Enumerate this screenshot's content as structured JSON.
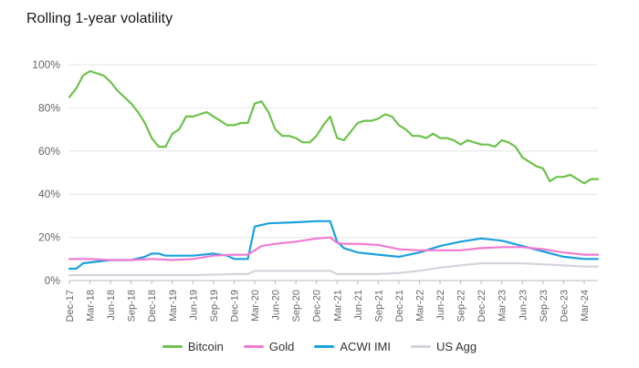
{
  "chart_data": {
    "type": "line",
    "title": "Rolling 1-year volatility",
    "y_unit": "%",
    "ylim": [
      0,
      100
    ],
    "y_ticks": [
      0,
      20,
      40,
      60,
      80,
      100
    ],
    "y_tick_labels": [
      "0%",
      "20%",
      "40%",
      "60%",
      "80%",
      "100%"
    ],
    "x_range": [
      "2017-12",
      "2024-05"
    ],
    "x_ticks": [
      "2017-12",
      "2018-03",
      "2018-06",
      "2018-09",
      "2018-12",
      "2019-03",
      "2019-06",
      "2019-09",
      "2019-12",
      "2020-03",
      "2020-06",
      "2020-09",
      "2020-12",
      "2021-03",
      "2021-06",
      "2021-09",
      "2021-12",
      "2022-03",
      "2022-06",
      "2022-09",
      "2022-12",
      "2023-03",
      "2023-06",
      "2023-09",
      "2023-12",
      "2024-03"
    ],
    "x_tick_labels": [
      "Dec-17",
      "Mar-18",
      "Jun-18",
      "Sep-18",
      "Dec-18",
      "Mar-19",
      "Jun-19",
      "Sep-19",
      "Dec-19",
      "Mar-20",
      "Jun-20",
      "Sep-20",
      "Dec-20",
      "Mar-21",
      "Jun-21",
      "Sep-21",
      "Dec-21",
      "Mar-22",
      "Jun-22",
      "Sep-22",
      "Dec-22",
      "Mar-23",
      "Jun-23",
      "Sep-23",
      "Dec-23",
      "Mar-24"
    ],
    "grid": "horizontal",
    "legend_position": "bottom",
    "series": [
      {
        "name": "Bitcoin",
        "color": "#6cc24a",
        "points": [
          [
            "2017-12",
            85
          ],
          [
            "2018-01",
            89
          ],
          [
            "2018-02",
            95
          ],
          [
            "2018-03",
            97
          ],
          [
            "2018-04",
            96
          ],
          [
            "2018-05",
            95
          ],
          [
            "2018-06",
            92
          ],
          [
            "2018-07",
            88
          ],
          [
            "2018-08",
            85
          ],
          [
            "2018-09",
            82
          ],
          [
            "2018-10",
            78
          ],
          [
            "2018-11",
            73
          ],
          [
            "2018-12",
            66
          ],
          [
            "2019-01",
            62
          ],
          [
            "2019-02",
            62
          ],
          [
            "2019-03",
            68
          ],
          [
            "2019-04",
            70
          ],
          [
            "2019-05",
            76
          ],
          [
            "2019-06",
            76
          ],
          [
            "2019-07",
            77
          ],
          [
            "2019-08",
            78
          ],
          [
            "2019-09",
            76
          ],
          [
            "2019-10",
            74
          ],
          [
            "2019-11",
            72
          ],
          [
            "2019-12",
            72
          ],
          [
            "2020-01",
            73
          ],
          [
            "2020-02",
            73
          ],
          [
            "2020-03",
            82
          ],
          [
            "2020-04",
            83
          ],
          [
            "2020-05",
            78
          ],
          [
            "2020-06",
            70
          ],
          [
            "2020-07",
            67
          ],
          [
            "2020-08",
            67
          ],
          [
            "2020-09",
            66
          ],
          [
            "2020-10",
            64
          ],
          [
            "2020-11",
            64
          ],
          [
            "2020-12",
            67
          ],
          [
            "2021-01",
            72
          ],
          [
            "2021-02",
            76
          ],
          [
            "2021-03",
            66
          ],
          [
            "2021-04",
            65
          ],
          [
            "2021-05",
            69
          ],
          [
            "2021-06",
            73
          ],
          [
            "2021-07",
            74
          ],
          [
            "2021-08",
            74
          ],
          [
            "2021-09",
            75
          ],
          [
            "2021-10",
            77
          ],
          [
            "2021-11",
            76
          ],
          [
            "2021-12",
            72
          ],
          [
            "2022-01",
            70
          ],
          [
            "2022-02",
            67
          ],
          [
            "2022-03",
            67
          ],
          [
            "2022-04",
            66
          ],
          [
            "2022-05",
            68
          ],
          [
            "2022-06",
            66
          ],
          [
            "2022-07",
            66
          ],
          [
            "2022-08",
            65
          ],
          [
            "2022-09",
            63
          ],
          [
            "2022-10",
            65
          ],
          [
            "2022-11",
            64
          ],
          [
            "2022-12",
            63
          ],
          [
            "2023-01",
            63
          ],
          [
            "2023-02",
            62
          ],
          [
            "2023-03",
            65
          ],
          [
            "2023-04",
            64
          ],
          [
            "2023-05",
            62
          ],
          [
            "2023-06",
            57
          ],
          [
            "2023-07",
            55
          ],
          [
            "2023-08",
            53
          ],
          [
            "2023-09",
            52
          ],
          [
            "2023-10",
            46
          ],
          [
            "2023-11",
            48
          ],
          [
            "2023-12",
            48
          ],
          [
            "2024-01",
            49
          ],
          [
            "2024-02",
            47
          ],
          [
            "2024-03",
            45
          ],
          [
            "2024-04",
            47
          ],
          [
            "2024-05",
            47
          ]
        ]
      },
      {
        "name": "Gold",
        "color": "#f279d2",
        "points": [
          [
            "2017-12",
            10
          ],
          [
            "2018-03",
            10
          ],
          [
            "2018-06",
            9.5
          ],
          [
            "2018-09",
            9.5
          ],
          [
            "2018-12",
            10
          ],
          [
            "2019-03",
            9.5
          ],
          [
            "2019-06",
            10
          ],
          [
            "2019-09",
            11.5
          ],
          [
            "2019-12",
            12
          ],
          [
            "2020-02",
            12
          ],
          [
            "2020-03",
            14
          ],
          [
            "2020-04",
            16
          ],
          [
            "2020-06",
            17
          ],
          [
            "2020-09",
            18
          ],
          [
            "2020-12",
            19.5
          ],
          [
            "2021-02",
            20
          ],
          [
            "2021-03",
            17.5
          ],
          [
            "2021-04",
            17
          ],
          [
            "2021-06",
            17
          ],
          [
            "2021-09",
            16.5
          ],
          [
            "2021-12",
            14.5
          ],
          [
            "2022-03",
            14
          ],
          [
            "2022-06",
            14
          ],
          [
            "2022-09",
            14
          ],
          [
            "2022-12",
            15
          ],
          [
            "2023-03",
            15.5
          ],
          [
            "2023-06",
            15.5
          ],
          [
            "2023-09",
            14.5
          ],
          [
            "2023-12",
            13
          ],
          [
            "2024-03",
            12
          ],
          [
            "2024-05",
            12
          ]
        ]
      },
      {
        "name": "ACWI IMI",
        "color": "#1aa1de",
        "points": [
          [
            "2017-12",
            5.5
          ],
          [
            "2018-01",
            5.5
          ],
          [
            "2018-02",
            8
          ],
          [
            "2018-06",
            9.5
          ],
          [
            "2018-09",
            9.5
          ],
          [
            "2018-11",
            11
          ],
          [
            "2018-12",
            12.5
          ],
          [
            "2019-01",
            12.5
          ],
          [
            "2019-02",
            11.5
          ],
          [
            "2019-06",
            11.5
          ],
          [
            "2019-09",
            12.5
          ],
          [
            "2019-11",
            11.5
          ],
          [
            "2019-12",
            10
          ],
          [
            "2020-02",
            10
          ],
          [
            "2020-03",
            25
          ],
          [
            "2020-05",
            26.5
          ],
          [
            "2020-09",
            27
          ],
          [
            "2020-12",
            27.5
          ],
          [
            "2021-02",
            27.5
          ],
          [
            "2021-03",
            18
          ],
          [
            "2021-04",
            15
          ],
          [
            "2021-06",
            13
          ],
          [
            "2021-09",
            12
          ],
          [
            "2021-12",
            11
          ],
          [
            "2022-03",
            13
          ],
          [
            "2022-06",
            16
          ],
          [
            "2022-09",
            18
          ],
          [
            "2022-12",
            19.5
          ],
          [
            "2023-03",
            18.5
          ],
          [
            "2023-06",
            16
          ],
          [
            "2023-09",
            13.5
          ],
          [
            "2023-12",
            11
          ],
          [
            "2024-03",
            10
          ],
          [
            "2024-05",
            10
          ]
        ]
      },
      {
        "name": "US Agg",
        "color": "#d5d2dc",
        "points": [
          [
            "2017-12",
            2.5
          ],
          [
            "2018-06",
            2.5
          ],
          [
            "2018-12",
            2.5
          ],
          [
            "2019-06",
            2.5
          ],
          [
            "2019-12",
            3
          ],
          [
            "2020-02",
            3
          ],
          [
            "2020-03",
            4.5
          ],
          [
            "2020-06",
            4.5
          ],
          [
            "2020-12",
            4.5
          ],
          [
            "2021-02",
            4.5
          ],
          [
            "2021-03",
            3
          ],
          [
            "2021-06",
            3
          ],
          [
            "2021-09",
            3
          ],
          [
            "2021-12",
            3.5
          ],
          [
            "2022-03",
            4.5
          ],
          [
            "2022-06",
            6
          ],
          [
            "2022-09",
            7
          ],
          [
            "2022-12",
            8
          ],
          [
            "2023-03",
            8
          ],
          [
            "2023-06",
            8
          ],
          [
            "2023-09",
            7.5
          ],
          [
            "2023-12",
            7
          ],
          [
            "2024-03",
            6.5
          ],
          [
            "2024-05",
            6.5
          ]
        ]
      }
    ]
  }
}
